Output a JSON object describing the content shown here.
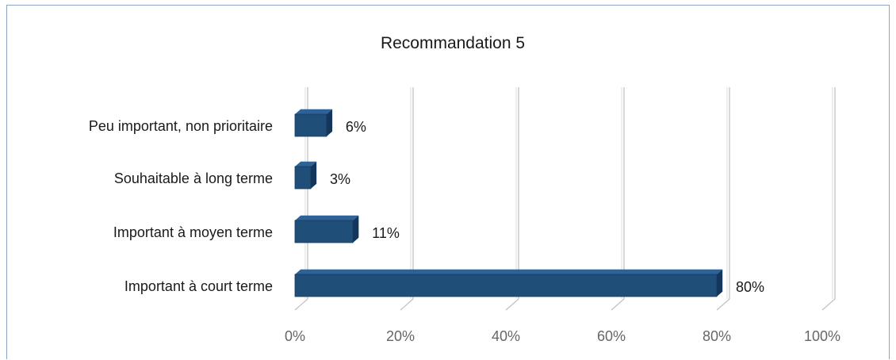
{
  "chart_data": {
    "type": "bar",
    "orientation": "horizontal",
    "style": "3d",
    "title": "Recommandation 5",
    "categories": [
      "Peu important, non prioritaire",
      "Souhaitable à long terme",
      "Important à moyen terme",
      "Important à court terme"
    ],
    "values": [
      6,
      3,
      11,
      80
    ],
    "data_labels": [
      "6%",
      "3%",
      "11%",
      "80%"
    ],
    "xlim": [
      0,
      100
    ],
    "x_ticks": [
      "0%",
      "20%",
      "40%",
      "60%",
      "80%",
      "100%"
    ],
    "gridlines": true,
    "legend": "none",
    "colors": {
      "bar_front": "#1f4e79",
      "bar_top": "#2f6398",
      "bar_side": "#14365a",
      "grid": "#bfbfbf",
      "frame": "#8ea4c6"
    }
  }
}
